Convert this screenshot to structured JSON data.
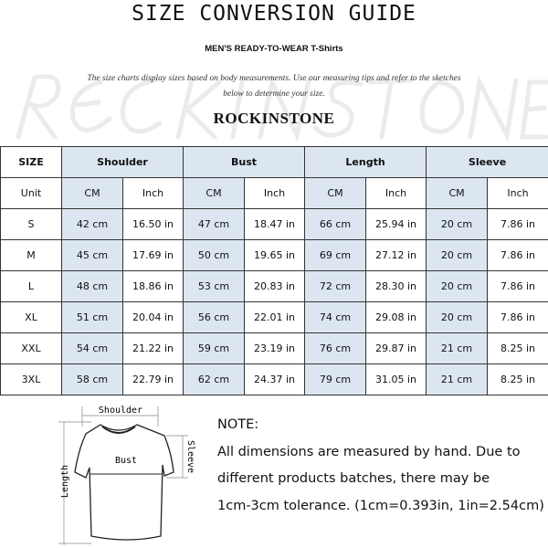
{
  "header": {
    "title": "SIZE CONVERSION GUIDE",
    "subtitle": "MEN'S READY-TO-WEAR T-Shirts",
    "intro": "The size charts display sizes based on body measurements.  Use our measuring tips and refer to the sketches below to determine your size.",
    "brand": "ROCKINSTONE",
    "watermark": "ROCKINSTONE"
  },
  "table": {
    "groups": [
      "SIZE",
      "Shoulder",
      "Bust",
      "Length",
      "Sleeve"
    ],
    "units": [
      "Unit",
      "CM",
      "Inch",
      "CM",
      "Inch",
      "CM",
      "Inch",
      "CM",
      "Inch"
    ],
    "rows": [
      [
        "S",
        "42 cm",
        "16.50 in",
        "47 cm",
        "18.47 in",
        "66 cm",
        "25.94 in",
        "20 cm",
        "7.86 in"
      ],
      [
        "M",
        "45 cm",
        "17.69 in",
        "50 cm",
        "19.65 in",
        "69 cm",
        "27.12 in",
        "20 cm",
        "7.86 in"
      ],
      [
        "L",
        "48 cm",
        "18.86 in",
        "53 cm",
        "20.83 in",
        "72 cm",
        "28.30 in",
        "20 cm",
        "7.86 in"
      ],
      [
        "XL",
        "51 cm",
        "20.04 in",
        "56 cm",
        "22.01 in",
        "74 cm",
        "29.08 in",
        "20 cm",
        "7.86 in"
      ],
      [
        "XXL",
        "54 cm",
        "21.22 in",
        "59 cm",
        "23.19 in",
        "76 cm",
        "29.87 in",
        "21 cm",
        "8.25 in"
      ],
      [
        "3XL",
        "58 cm",
        "22.79 in",
        "62 cm",
        "24.37 in",
        "79 cm",
        "31.05 in",
        "21 cm",
        "8.25 in"
      ]
    ]
  },
  "diagram": {
    "shoulder": "Shoulder",
    "bust": "Bust",
    "sleeve": "Sleeve",
    "length": "Length"
  },
  "note": {
    "heading": "NOTE:",
    "lines": [
      "All dimensions are measured by hand. Due to",
      "different products batches, there may be",
      "1cm-3cm tolerance. (1cm=0.393in, 1in=2.54cm)"
    ]
  },
  "colors": {
    "cm_cell": "#dce6f1",
    "border": "#333333"
  }
}
